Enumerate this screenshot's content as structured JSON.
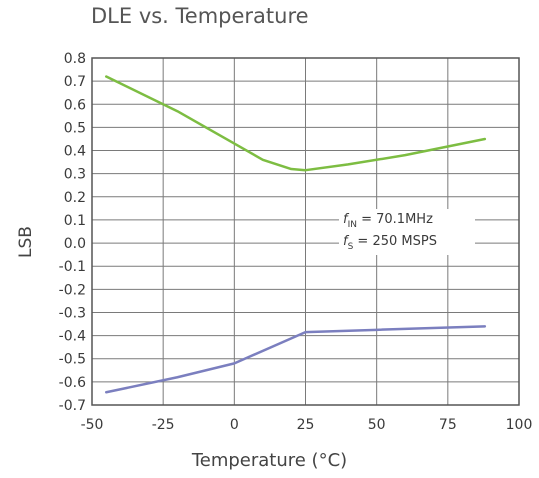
{
  "chart_data": {
    "type": "line",
    "title": "DLE vs. Temperature",
    "xlabel": "Temperature (°C)",
    "ylabel": "LSB",
    "xlim": [
      -50,
      100
    ],
    "ylim": [
      -0.7,
      0.8
    ],
    "xticks": [
      "-50",
      "-25",
      "0",
      "25",
      "50",
      "75",
      "100"
    ],
    "yticks": [
      "0.8",
      "0.7",
      "0.6",
      "0.5",
      "0.4",
      "0.3",
      "0.2",
      "0.1",
      "0.0",
      "-0.1",
      "-0.2",
      "-0.3",
      "-0.4",
      "-0.5",
      "-0.6",
      "-0.7"
    ],
    "grid": true,
    "annotation": {
      "line1": {
        "prefix": "f",
        "sub": "IN",
        "text": " = 70.1MHz"
      },
      "line2": {
        "prefix": "f",
        "sub": "S",
        "text": " = 250 MSPS"
      }
    },
    "series": [
      {
        "color": "#7dbd42",
        "x": [
          -45,
          -20,
          0,
          10,
          20,
          25,
          40,
          60,
          88
        ],
        "y": [
          0.72,
          0.57,
          0.43,
          0.36,
          0.32,
          0.315,
          0.34,
          0.38,
          0.45
        ]
      },
      {
        "color": "#7b7fbf",
        "x": [
          -45,
          -20,
          0,
          25,
          50,
          88
        ],
        "y": [
          -0.645,
          -0.58,
          -0.52,
          -0.385,
          -0.375,
          -0.36
        ]
      }
    ]
  }
}
